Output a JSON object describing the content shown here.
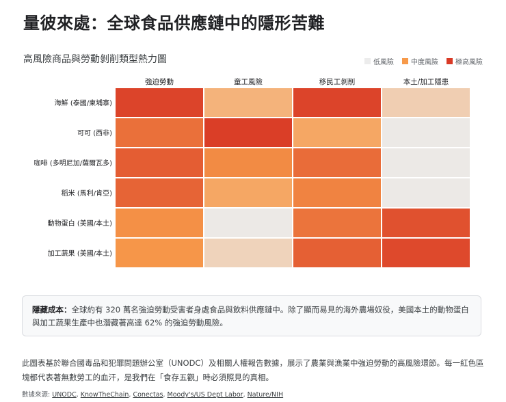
{
  "page": {
    "title": "量彼來處：全球食品供應鏈中的隱形苦難",
    "subtitle": "高風險商品與勞動剝削類型熱力圖"
  },
  "legend": [
    {
      "label": "低風險",
      "color": "#ececec"
    },
    {
      "label": "中度風險",
      "color": "#f79a4a"
    },
    {
      "label": "極高風險",
      "color": "#d93a26"
    }
  ],
  "chart_data": {
    "type": "heatmap",
    "title": "高風險商品與勞動剝削類型熱力圖",
    "columns": [
      "強迫勞動",
      "童工風險",
      "移民工剝削",
      "本土/加工隱患"
    ],
    "rows": [
      "海鮮 (泰國/柬埔寨)",
      "可可 (西非)",
      "咖啡 (多明尼加/薩爾瓦多)",
      "稻米 (馬利/肯亞)",
      "動物蛋白 (美國/本土)",
      "加工蔬果 (美國/本土)"
    ],
    "values": [
      [
        0.95,
        0.35,
        0.95,
        0.18
      ],
      [
        0.72,
        0.98,
        0.42,
        0.02
      ],
      [
        0.82,
        0.58,
        0.74,
        0.02
      ],
      [
        0.78,
        0.42,
        0.62,
        0.02
      ],
      [
        0.55,
        0.02,
        0.7,
        0.88
      ],
      [
        0.52,
        0.15,
        0.8,
        0.92
      ]
    ],
    "scale": {
      "min": 0,
      "max": 1,
      "low_color": "#ececec",
      "mid_color": "#f79a4a",
      "high_color": "#d93a26"
    }
  },
  "callout": {
    "label": "隱藏成本：",
    "text": "全球約有 320 萬名強迫勞動受害者身處食品與飲料供應鏈中。除了顯而易見的海外農場奴役，美國本土的動物蛋白與加工蔬果生產中也潛藏著高達 62% 的強迫勞動風險。"
  },
  "description": "此圖表基於聯合國毒品和犯罪問題辦公室（UNODC）及相關人權報告數據，展示了農業與漁業中強迫勞動的高風險環節。每一紅色區塊都代表著無數勞工的血汗，是我們在「食存五觀」時必須照見的真相。",
  "source": {
    "label": "數據來源: ",
    "links": [
      "UNODC",
      "KnowTheChain",
      "Conectas",
      "Moody's/US Dept Labor",
      "Nature/NIH"
    ]
  }
}
